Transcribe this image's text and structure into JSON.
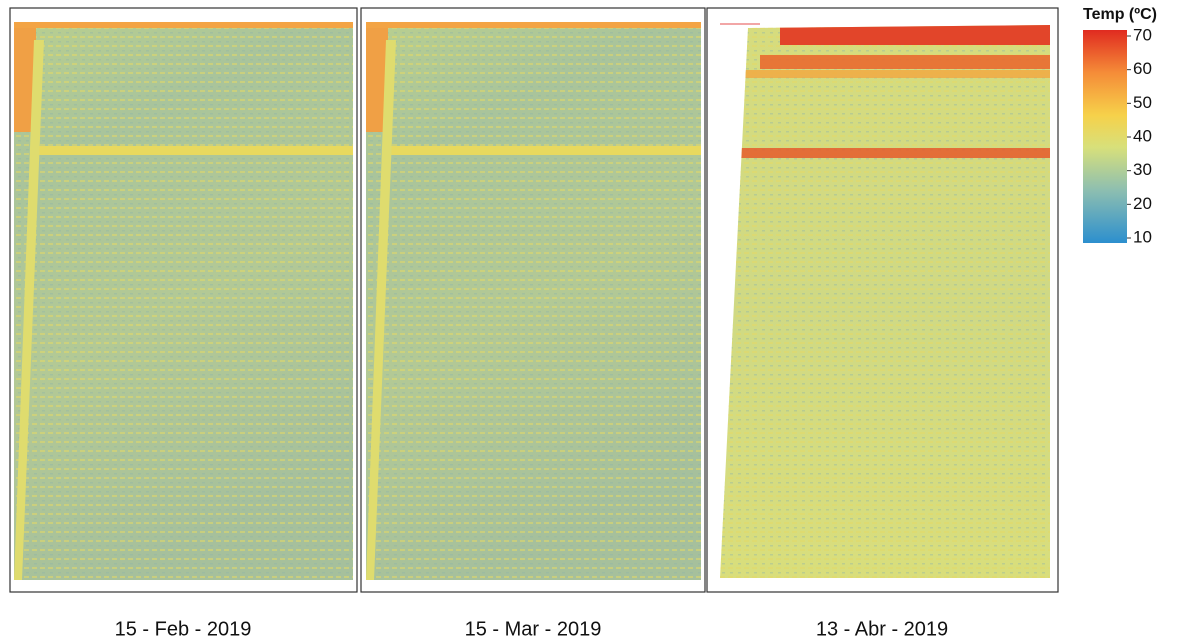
{
  "panels": [
    {
      "caption": "15 - Feb - 2019"
    },
    {
      "caption": "15 - Mar - 2019"
    },
    {
      "caption": "13 - Abr - 2019"
    }
  ],
  "colorbar": {
    "title": "Temp (ºC)",
    "range": [
      10,
      70
    ],
    "ticks": [
      10,
      20,
      30,
      40,
      50,
      60,
      70
    ]
  }
}
